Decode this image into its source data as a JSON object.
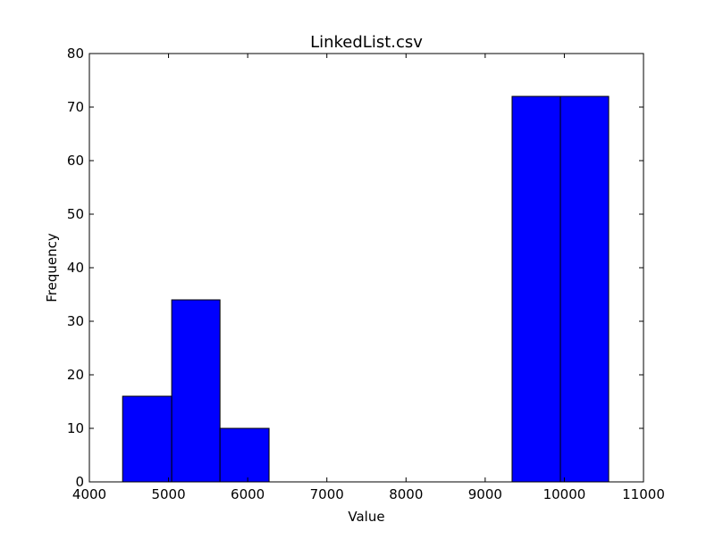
{
  "chart_data": {
    "type": "bar",
    "title": "LinkedList.csv",
    "xlabel": "Value",
    "ylabel": "Frequency",
    "xlim": [
      4000,
      11000
    ],
    "ylim": [
      0,
      80
    ],
    "x_ticks": [
      4000,
      5000,
      6000,
      7000,
      8000,
      9000,
      10000,
      11000
    ],
    "y_ticks": [
      0,
      10,
      20,
      30,
      40,
      50,
      60,
      70,
      80
    ],
    "bins": [
      {
        "start": 4420,
        "end": 5040,
        "count": 16
      },
      {
        "start": 5040,
        "end": 5650,
        "count": 34
      },
      {
        "start": 5650,
        "end": 6270,
        "count": 10
      },
      {
        "start": 6270,
        "end": 6890,
        "count": 0
      },
      {
        "start": 6890,
        "end": 7500,
        "count": 0
      },
      {
        "start": 7500,
        "end": 8120,
        "count": 0
      },
      {
        "start": 8120,
        "end": 8730,
        "count": 0
      },
      {
        "start": 8730,
        "end": 9340,
        "count": 0
      },
      {
        "start": 9340,
        "end": 9950,
        "count": 72
      },
      {
        "start": 9950,
        "end": 10560,
        "count": 72
      }
    ],
    "bar_color": "#0000ff",
    "edge_color": "#000000",
    "grid": false,
    "legend": "none"
  }
}
